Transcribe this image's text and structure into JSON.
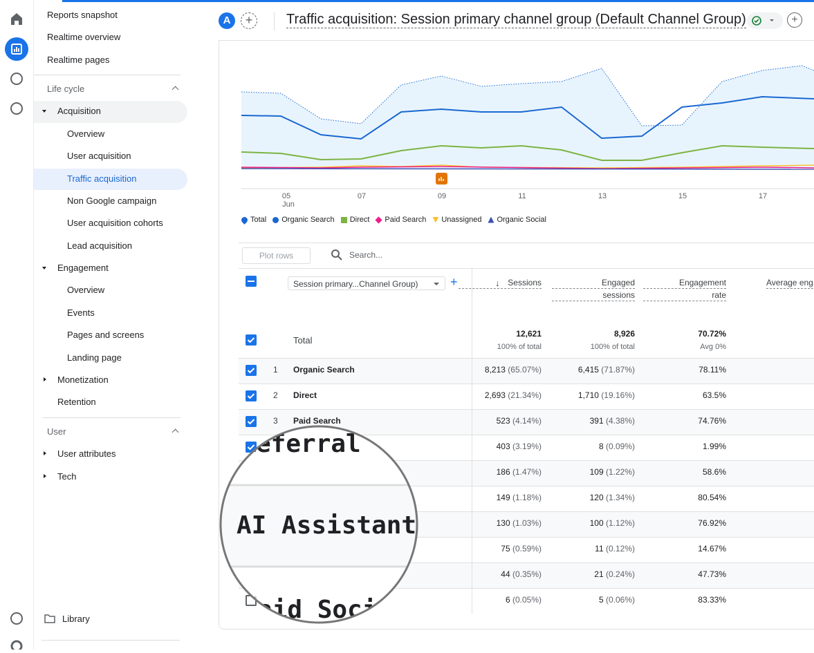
{
  "header": {
    "avatar": "A",
    "title": "Traffic acquisition: Session primary channel group (Default Channel Group)"
  },
  "nav": {
    "items": [
      "Reports snapshot",
      "Realtime overview",
      "Realtime pages",
      "Life cycle",
      "Acquisition",
      "Overview",
      "User acquisition",
      "Traffic acquisition",
      "Non Google campaign",
      "User acquisition cohorts",
      "Lead acquisition",
      "Engagement",
      "Overview",
      "Events",
      "Pages and screens",
      "Landing page",
      "Monetization",
      "Retention",
      "User",
      "User attributes",
      "Tech"
    ],
    "library": "Library"
  },
  "chart": {
    "x_labels": [
      "05",
      "07",
      "09",
      "11",
      "13",
      "15",
      "17"
    ],
    "month": "Jun",
    "legend": [
      "Total",
      "Organic Search",
      "Direct",
      "Paid Search",
      "Unassigned",
      "Organic Social"
    ]
  },
  "toolbar": {
    "plot_rows": "Plot rows",
    "search": "Search..."
  },
  "table": {
    "dimension": "Session primary...Channel Group)",
    "columns": [
      [
        "Sessions"
      ],
      [
        "Engaged",
        "sessions"
      ],
      [
        "Engagement",
        "rate"
      ],
      [
        "Average eng"
      ]
    ],
    "total": {
      "label": "Total",
      "sessions": "12,621",
      "sessions_note": "100% of total",
      "engaged": "8,926",
      "engaged_note": "100% of total",
      "rate": "70.72%",
      "rate_note": "Avg 0%"
    },
    "rows": [
      [
        "1",
        "Organic Search",
        "8,213",
        "(65.07%)",
        "6,415",
        "(71.87%)",
        "78.11%"
      ],
      [
        "2",
        "Direct",
        "2,693",
        "(21.34%)",
        "1,710",
        "(19.16%)",
        "63.5%"
      ],
      [
        "3",
        "Paid Search",
        "523",
        "(4.14%)",
        "391",
        "(4.38%)",
        "74.76%"
      ],
      [
        null,
        null,
        "403",
        "(3.19%)",
        "8",
        "(0.09%)",
        "1.99%"
      ],
      [
        null,
        null,
        "186",
        "(1.47%)",
        "109",
        "(1.22%)",
        "58.6%"
      ],
      [
        null,
        null,
        "149",
        "(1.18%)",
        "120",
        "(1.34%)",
        "80.54%"
      ],
      [
        null,
        null,
        "130",
        "(1.03%)",
        "100",
        "(1.12%)",
        "76.92%"
      ],
      [
        null,
        null,
        "75",
        "(0.59%)",
        "11",
        "(0.12%)",
        "14.67%"
      ],
      [
        null,
        null,
        "44",
        "(0.35%)",
        "21",
        "(0.24%)",
        "47.73%"
      ],
      [
        null,
        null,
        "6",
        "(0.05%)",
        "5",
        "(0.06%)",
        "83.33%"
      ]
    ]
  },
  "magnifier": [
    "eferral",
    "AI Assistant",
    "aid Socia"
  ]
}
